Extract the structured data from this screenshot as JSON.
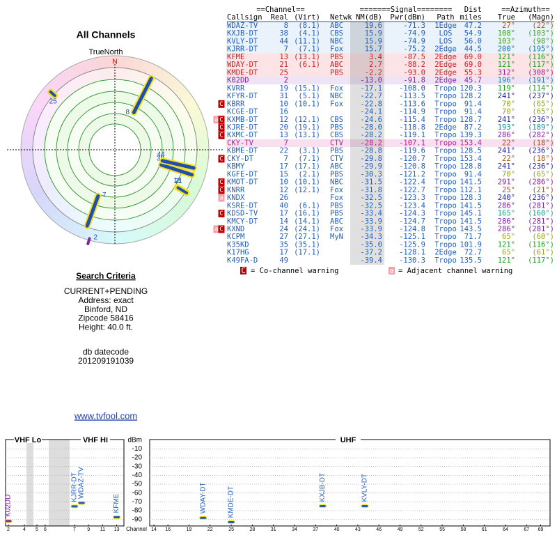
{
  "radar": {
    "title": "All Channels",
    "north_label": "TrueNorth",
    "n": "N"
  },
  "search": {
    "title": "Search Criteria",
    "lines": [
      "CURRENT+PENDING",
      "Address: exact",
      "Binford, ND",
      "Zipcode 58416",
      "Height: 40.0 ft."
    ]
  },
  "db": {
    "label": "db datecode",
    "code": "201209191039"
  },
  "link": "www.tvfool.com",
  "table": {
    "header1": {
      "channel": "==Channel==",
      "signal": "=======Signal========",
      "dist": "Dist",
      "azimuth": "==Azimuth=="
    },
    "header2": {
      "callsign": "Callsign",
      "real": "Real",
      "virt": "(Virt)",
      "netwk": "Netwk",
      "nm": "NM(dB)",
      "pwr": "Pwr(dBm)",
      "path": "Path",
      "dist": "miles",
      "az_true": "True",
      "az_magn": "(Magn)"
    },
    "rows": [
      {
        "callsign": "WDAZ-TV",
        "real": "8",
        "virt": "(8.1)",
        "netwk": "ABC",
        "nm": "19.6",
        "pwr": "-71.3",
        "path": "1Edge",
        "dist": "47.2",
        "az_true": "27°",
        "az_magn": "(22°)",
        "color": "#1f5fbf",
        "bg": "#eaf2fb"
      },
      {
        "callsign": "KXJB-DT",
        "real": "38",
        "virt": "(4.1)",
        "netwk": "CBS",
        "nm": "15.9",
        "pwr": "-74.9",
        "path": "LOS",
        "dist": "54.9",
        "az_true": "108°",
        "az_magn": "(103°)",
        "color": "#1f5fbf",
        "bg": "#eaf2fb"
      },
      {
        "callsign": "KVLY-DT",
        "real": "44",
        "virt": "(11.1)",
        "netwk": "NBC",
        "nm": "15.9",
        "pwr": "-74.9",
        "path": "LOS",
        "dist": "56.0",
        "az_true": "103°",
        "az_magn": "(98°)",
        "color": "#1f5fbf",
        "bg": "#eaf2fb"
      },
      {
        "callsign": "KJRR-DT",
        "real": "7",
        "virt": "(7.1)",
        "netwk": "Fox",
        "nm": "15.7",
        "pwr": "-75.2",
        "path": "2Edge",
        "dist": "44.5",
        "az_true": "200°",
        "az_magn": "(195°)",
        "color": "#1f5fbf",
        "bg": "#eaf2fb"
      },
      {
        "callsign": "KFME",
        "real": "13",
        "virt": "(13.1)",
        "netwk": "PBS",
        "nm": "3.4",
        "pwr": "-87.5",
        "path": "2Edge",
        "dist": "69.0",
        "az_true": "121°",
        "az_magn": "(116°)",
        "color": "#cc2222",
        "bg": "#fbe3e6"
      },
      {
        "callsign": "WDAY-DT",
        "real": "21",
        "virt": "(6.1)",
        "netwk": "ABC",
        "nm": "2.7",
        "pwr": "-88.2",
        "path": "2Edge",
        "dist": "69.0",
        "az_true": "121°",
        "az_magn": "(117°)",
        "color": "#cc2222",
        "bg": "#fbe3e6"
      },
      {
        "callsign": "KMDE-DT",
        "real": "25",
        "netwk": "PBS",
        "nm": "-2.2",
        "pwr": "-93.0",
        "path": "2Edge",
        "dist": "55.3",
        "az_true": "312°",
        "az_magn": "(308°)",
        "color": "#cc2222",
        "bg": "#fbe3e6"
      },
      {
        "callsign": "K02DD",
        "real": "2",
        "nm": "-13.0",
        "pwr": "-91.8",
        "path": "2Edge",
        "dist": "45.7",
        "az_true": "196°",
        "az_magn": "(191°)",
        "color": "#8822aa",
        "bg": "#efe4f6"
      },
      {
        "callsign": "KVRR",
        "real": "19",
        "virt": "(15.1)",
        "netwk": "Fox",
        "nm": "-17.1",
        "pwr": "-108.0",
        "path": "Tropo",
        "dist": "120.3",
        "az_true": "119°",
        "az_magn": "(114°)",
        "color": "#1f5fbf"
      },
      {
        "callsign": "KFYR-DT",
        "real": "31",
        "virt": "(5.1)",
        "netwk": "NBC",
        "nm": "-22.7",
        "pwr": "-113.5",
        "path": "Tropo",
        "dist": "128.2",
        "az_true": "241°",
        "az_magn": "(237°)",
        "color": "#1f5fbf"
      },
      {
        "callsign": "KBRR",
        "real": "10",
        "virt": "(10.1)",
        "netwk": "Fox",
        "nm": "-22.8",
        "pwr": "-113.6",
        "path": "Tropo",
        "dist": "91.4",
        "az_true": "70°",
        "az_magn": "(65°)",
        "color": "#1f5fbf",
        "warn": [
          "C"
        ]
      },
      {
        "callsign": "KCGE-DT",
        "real": "16",
        "nm": "-24.1",
        "pwr": "-114.9",
        "path": "Tropo",
        "dist": "91.4",
        "az_true": "70°",
        "az_magn": "(65°)",
        "color": "#1f5fbf"
      },
      {
        "callsign": "KXMB-DT",
        "real": "12",
        "virt": "(12.1)",
        "netwk": "CBS",
        "nm": "-24.6",
        "pwr": "-115.4",
        "path": "Tropo",
        "dist": "128.7",
        "az_true": "241°",
        "az_magn": "(236°)",
        "color": "#1f5fbf",
        "warn": [
          "a",
          "C"
        ]
      },
      {
        "callsign": "KJRE-DT",
        "real": "20",
        "virt": "(19.1)",
        "netwk": "PBS",
        "nm": "-28.0",
        "pwr": "-118.8",
        "path": "2Edge",
        "dist": "87.2",
        "az_true": "193°",
        "az_magn": "(189°)",
        "color": "#1f5fbf",
        "warn": [
          "C"
        ]
      },
      {
        "callsign": "KXMC-DT",
        "real": "13",
        "virt": "(13.1)",
        "netwk": "CBS",
        "nm": "-28.2",
        "pwr": "-119.1",
        "path": "Tropo",
        "dist": "139.3",
        "az_true": "286°",
        "az_magn": "(282°)",
        "color": "#1f5fbf",
        "warn": [
          "C"
        ]
      },
      {
        "callsign": "CKY-TV",
        "real": "7",
        "netwk": "CTV",
        "nm": "-28.2",
        "pwr": "-107.1",
        "path": "Tropo",
        "dist": "153.4",
        "az_true": "22°",
        "az_magn": "(18°)",
        "color": "#bb2299",
        "bg": "#f8e0f0"
      },
      {
        "callsign": "KBME-DT",
        "real": "22",
        "virt": "(3.1)",
        "netwk": "PBS",
        "nm": "-28.8",
        "pwr": "-119.6",
        "path": "Tropo",
        "dist": "128.5",
        "az_true": "241°",
        "az_magn": "(236°)",
        "color": "#1f5fbf"
      },
      {
        "callsign": "CKY-DT",
        "real": "7",
        "virt": "(7.1)",
        "netwk": "CTV",
        "nm": "-29.8",
        "pwr": "-120.7",
        "path": "Tropo",
        "dist": "153.4",
        "az_true": "22°",
        "az_magn": "(18°)",
        "color": "#1f5fbf",
        "warn": [
          "C"
        ]
      },
      {
        "callsign": "KBMY",
        "real": "17",
        "virt": "(17.1)",
        "netwk": "ABC",
        "nm": "-29.9",
        "pwr": "-120.8",
        "path": "Tropo",
        "dist": "128.8",
        "az_true": "241°",
        "az_magn": "(236°)",
        "color": "#1f5fbf"
      },
      {
        "callsign": "KGFE-DT",
        "real": "15",
        "virt": "(2.1)",
        "netwk": "PBS",
        "nm": "-30.3",
        "pwr": "-121.2",
        "path": "Tropo",
        "dist": "91.4",
        "az_true": "70°",
        "az_magn": "(65°)",
        "color": "#1f5fbf"
      },
      {
        "callsign": "KMOT-DT",
        "real": "10",
        "virt": "(10.1)",
        "netwk": "NBC",
        "nm": "-31.5",
        "pwr": "-122.4",
        "path": "Tropo",
        "dist": "141.5",
        "az_true": "291°",
        "az_magn": "(286°)",
        "color": "#1f5fbf",
        "warn": [
          "C"
        ]
      },
      {
        "callsign": "KNRR",
        "real": "12",
        "virt": "(12.1)",
        "netwk": "Fox",
        "nm": "-31.8",
        "pwr": "-122.7",
        "path": "Tropo",
        "dist": "112.1",
        "az_true": "25°",
        "az_magn": "(21°)",
        "color": "#1f5fbf",
        "warn": [
          "C"
        ]
      },
      {
        "callsign": "KNDX",
        "real": "26",
        "netwk": "Fox",
        "nm": "-32.5",
        "pwr": "-123.3",
        "path": "Tropo",
        "dist": "128.3",
        "az_true": "240°",
        "az_magn": "(236°)",
        "color": "#1f5fbf",
        "warn": [
          "a"
        ]
      },
      {
        "callsign": "KSRE-DT",
        "real": "40",
        "virt": "(6.1)",
        "netwk": "PBS",
        "nm": "-32.5",
        "pwr": "-123.4",
        "path": "Tropo",
        "dist": "141.5",
        "az_true": "286°",
        "az_magn": "(281°)",
        "color": "#1f5fbf"
      },
      {
        "callsign": "KDSD-TV",
        "real": "17",
        "virt": "(16.1)",
        "netwk": "PBS",
        "nm": "-33.4",
        "pwr": "-124.3",
        "path": "Tropo",
        "dist": "145.1",
        "az_true": "165°",
        "az_magn": "(160°)",
        "color": "#1f5fbf",
        "warn": [
          "C"
        ]
      },
      {
        "callsign": "KMCY-DT",
        "real": "14",
        "virt": "(14.1)",
        "netwk": "ABC",
        "nm": "-33.9",
        "pwr": "-124.7",
        "path": "Tropo",
        "dist": "141.5",
        "az_true": "286°",
        "az_magn": "(281°)",
        "color": "#1f5fbf"
      },
      {
        "callsign": "KXND",
        "real": "24",
        "virt": "(24.1)",
        "netwk": "Fox",
        "nm": "-33.9",
        "pwr": "-124.8",
        "path": "Tropo",
        "dist": "143.5",
        "az_true": "286°",
        "az_magn": "(281°)",
        "color": "#1f5fbf",
        "warn": [
          "a",
          "C"
        ]
      },
      {
        "callsign": "KCPM",
        "real": "27",
        "virt": "(27.1)",
        "netwk": "MyN",
        "nm": "-34.3",
        "pwr": "-125.1",
        "path": "Tropo",
        "dist": "71.7",
        "az_true": "65°",
        "az_magn": "(60°)",
        "color": "#1f5fbf"
      },
      {
        "callsign": "K35KD",
        "real": "35",
        "virt": "(35.1)",
        "nm": "-35.0",
        "pwr": "-125.9",
        "path": "Tropo",
        "dist": "101.9",
        "az_true": "121°",
        "az_magn": "(116°)",
        "color": "#1f5fbf"
      },
      {
        "callsign": "K17HG",
        "real": "17",
        "virt": "(17.1)",
        "nm": "-37.2",
        "pwr": "-128.1",
        "path": "2Edge",
        "dist": "72.7",
        "az_true": "65°",
        "az_magn": "(61°)",
        "color": "#1f5fbf"
      },
      {
        "callsign": "K49FA-D",
        "real": "49",
        "nm": "-39.4",
        "pwr": "-130.3",
        "path": "Tropo",
        "dist": "135.5",
        "az_true": "121°",
        "az_magn": "(117°)",
        "color": "#1f5fbf"
      }
    ]
  },
  "legend": {
    "co_icon": "C",
    "co": "= Co-channel warning",
    "adj_icon": "a",
    "adj": "= Adjacent channel warning"
  },
  "chart_data": {
    "type": "scatter",
    "y_label": "dBm",
    "x_label": "Channel",
    "bands": [
      "VHF Lo",
      "VHF Hi",
      "UHF"
    ],
    "x": [
      2,
      7,
      8,
      13,
      21,
      25,
      38,
      44
    ],
    "values": [
      -91.8,
      -75.2,
      -71.3,
      -87.5,
      -88.2,
      -93.0,
      -74.9,
      -74.9
    ],
    "point_labels": [
      "K02DD",
      "KJRR-DT",
      "WDAZ-TV",
      "KFME",
      "WDAY-DT",
      "KMDE-DT",
      "KXJB-DT",
      "KVLY-DT"
    ],
    "colors": [
      "#8822aa",
      "#1f5fbf",
      "#1f5fbf",
      "#1f5fbf",
      "#1f5fbf",
      "#1f5fbf",
      "#1f5fbf",
      "#1f5fbf"
    ],
    "xlim": [
      2,
      69
    ],
    "xticks": [
      2,
      4,
      5,
      6,
      7,
      9,
      11,
      13,
      14,
      16,
      19,
      22,
      25,
      28,
      31,
      34,
      37,
      40,
      43,
      46,
      49,
      52,
      55,
      58,
      61,
      64,
      67,
      69
    ],
    "ylim": [
      -95,
      -5
    ],
    "yticks": [
      -10,
      -20,
      -30,
      -40,
      -50,
      -60,
      -70,
      -80,
      -90
    ]
  }
}
